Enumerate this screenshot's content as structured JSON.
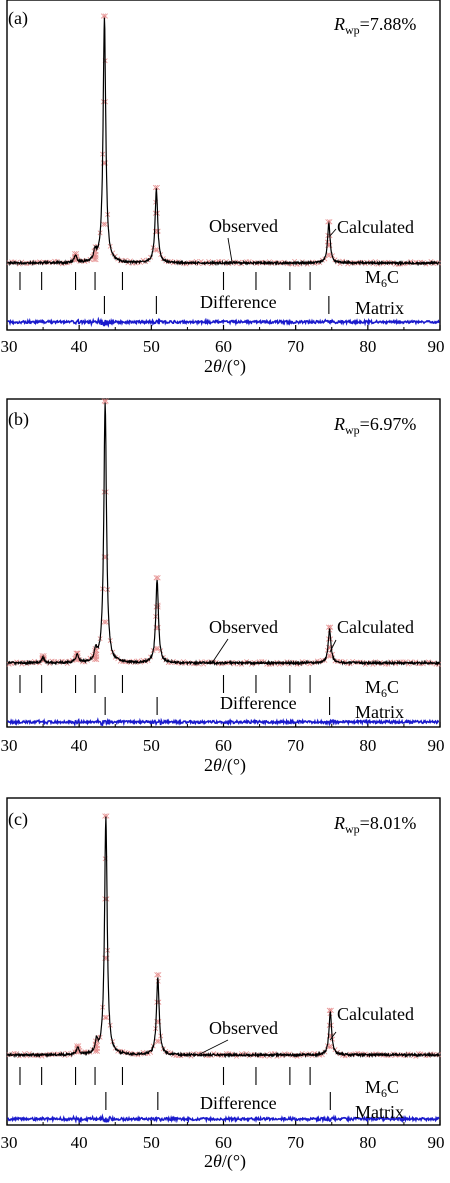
{
  "chart_data": [
    {
      "type": "line",
      "panel_label": "(a)",
      "rwp_label": "R",
      "rwp_sub": "wp",
      "rwp_value": "=7.88%",
      "xlabel": "2θ/(°)",
      "xlim": [
        30,
        90
      ],
      "xticks": [
        "30",
        "40",
        "50",
        "60",
        "70",
        "80",
        "90"
      ],
      "annotations": {
        "observed": "Observed",
        "calculated": "Calculated",
        "difference": "Difference",
        "phase1": "M",
        "phase1_sub": "6",
        "phase1_tail": "C",
        "phase2": "Matrix"
      },
      "series": [
        {
          "name": "Observed",
          "peaks": [
            {
              "x": 39.5,
              "y": 0.03
            },
            {
              "x": 42.2,
              "y": 0.04
            },
            {
              "x": 43.5,
              "y": 1.0
            },
            {
              "x": 50.7,
              "y": 0.3
            },
            {
              "x": 74.6,
              "y": 0.16
            }
          ]
        },
        {
          "name": "Calculated",
          "peaks": [
            {
              "x": 39.5,
              "y": 0.03
            },
            {
              "x": 42.2,
              "y": 0.04
            },
            {
              "x": 43.5,
              "y": 1.0
            },
            {
              "x": 50.7,
              "y": 0.3
            },
            {
              "x": 74.6,
              "y": 0.16
            }
          ]
        }
      ],
      "phase_ticks": {
        "M6C": [
          31.8,
          34.8,
          39.5,
          42.2,
          46.0,
          60.0,
          64.5,
          69.2,
          72.0
        ],
        "Matrix": [
          43.5,
          50.7,
          74.6
        ]
      }
    },
    {
      "type": "line",
      "panel_label": "(b)",
      "rwp_label": "R",
      "rwp_sub": "wp",
      "rwp_value": "=6.97%",
      "xlabel": "2θ/(°)",
      "xlim": [
        30,
        90
      ],
      "xticks": [
        "30",
        "40",
        "50",
        "60",
        "70",
        "80",
        "90"
      ],
      "annotations": {
        "observed": "Observed",
        "calculated": "Calculated",
        "difference": "Difference",
        "phase1": "M",
        "phase1_sub": "6",
        "phase1_tail": "C",
        "phase2": "Matrix"
      },
      "series": [
        {
          "name": "Observed",
          "peaks": [
            {
              "x": 35.0,
              "y": 0.02
            },
            {
              "x": 39.7,
              "y": 0.03
            },
            {
              "x": 42.3,
              "y": 0.04
            },
            {
              "x": 43.6,
              "y": 1.0
            },
            {
              "x": 50.8,
              "y": 0.32
            },
            {
              "x": 74.7,
              "y": 0.13
            }
          ]
        },
        {
          "name": "Calculated",
          "peaks": [
            {
              "x": 35.0,
              "y": 0.02
            },
            {
              "x": 39.7,
              "y": 0.03
            },
            {
              "x": 42.3,
              "y": 0.04
            },
            {
              "x": 43.6,
              "y": 1.0
            },
            {
              "x": 50.8,
              "y": 0.32
            },
            {
              "x": 74.7,
              "y": 0.13
            }
          ]
        }
      ],
      "phase_ticks": {
        "M6C": [
          31.8,
          34.8,
          39.5,
          42.2,
          46.0,
          60.0,
          64.5,
          69.2,
          72.0
        ],
        "Matrix": [
          43.6,
          50.8,
          74.7
        ]
      }
    },
    {
      "type": "line",
      "panel_label": "(c)",
      "rwp_label": "R",
      "rwp_sub": "wp",
      "rwp_value": "=8.01%",
      "xlabel": "2θ/(°)",
      "xlim": [
        30,
        90
      ],
      "xticks": [
        "30",
        "40",
        "50",
        "60",
        "70",
        "80",
        "90"
      ],
      "annotations": {
        "observed": "Observed",
        "calculated": "Calculated",
        "difference": "Difference",
        "phase1": "M",
        "phase1_sub": "6",
        "phase1_tail": "C",
        "phase2": "Matrix"
      },
      "series": [
        {
          "name": "Observed",
          "peaks": [
            {
              "x": 39.8,
              "y": 0.03
            },
            {
              "x": 42.4,
              "y": 0.05
            },
            {
              "x": 43.7,
              "y": 1.0
            },
            {
              "x": 50.9,
              "y": 0.33
            },
            {
              "x": 74.8,
              "y": 0.18
            }
          ]
        },
        {
          "name": "Calculated",
          "peaks": [
            {
              "x": 39.8,
              "y": 0.03
            },
            {
              "x": 42.4,
              "y": 0.05
            },
            {
              "x": 43.7,
              "y": 1.0
            },
            {
              "x": 50.9,
              "y": 0.33
            },
            {
              "x": 74.8,
              "y": 0.18
            }
          ]
        }
      ],
      "phase_ticks": {
        "M6C": [
          31.8,
          34.8,
          39.5,
          42.2,
          46.0,
          60.0,
          64.5,
          69.2,
          72.0
        ],
        "Matrix": [
          43.7,
          50.9,
          74.8
        ]
      }
    }
  ],
  "colors": {
    "observed": "#e07a7a",
    "calculated": "#000000",
    "difference": "#1a1acc",
    "axis": "#000000"
  }
}
